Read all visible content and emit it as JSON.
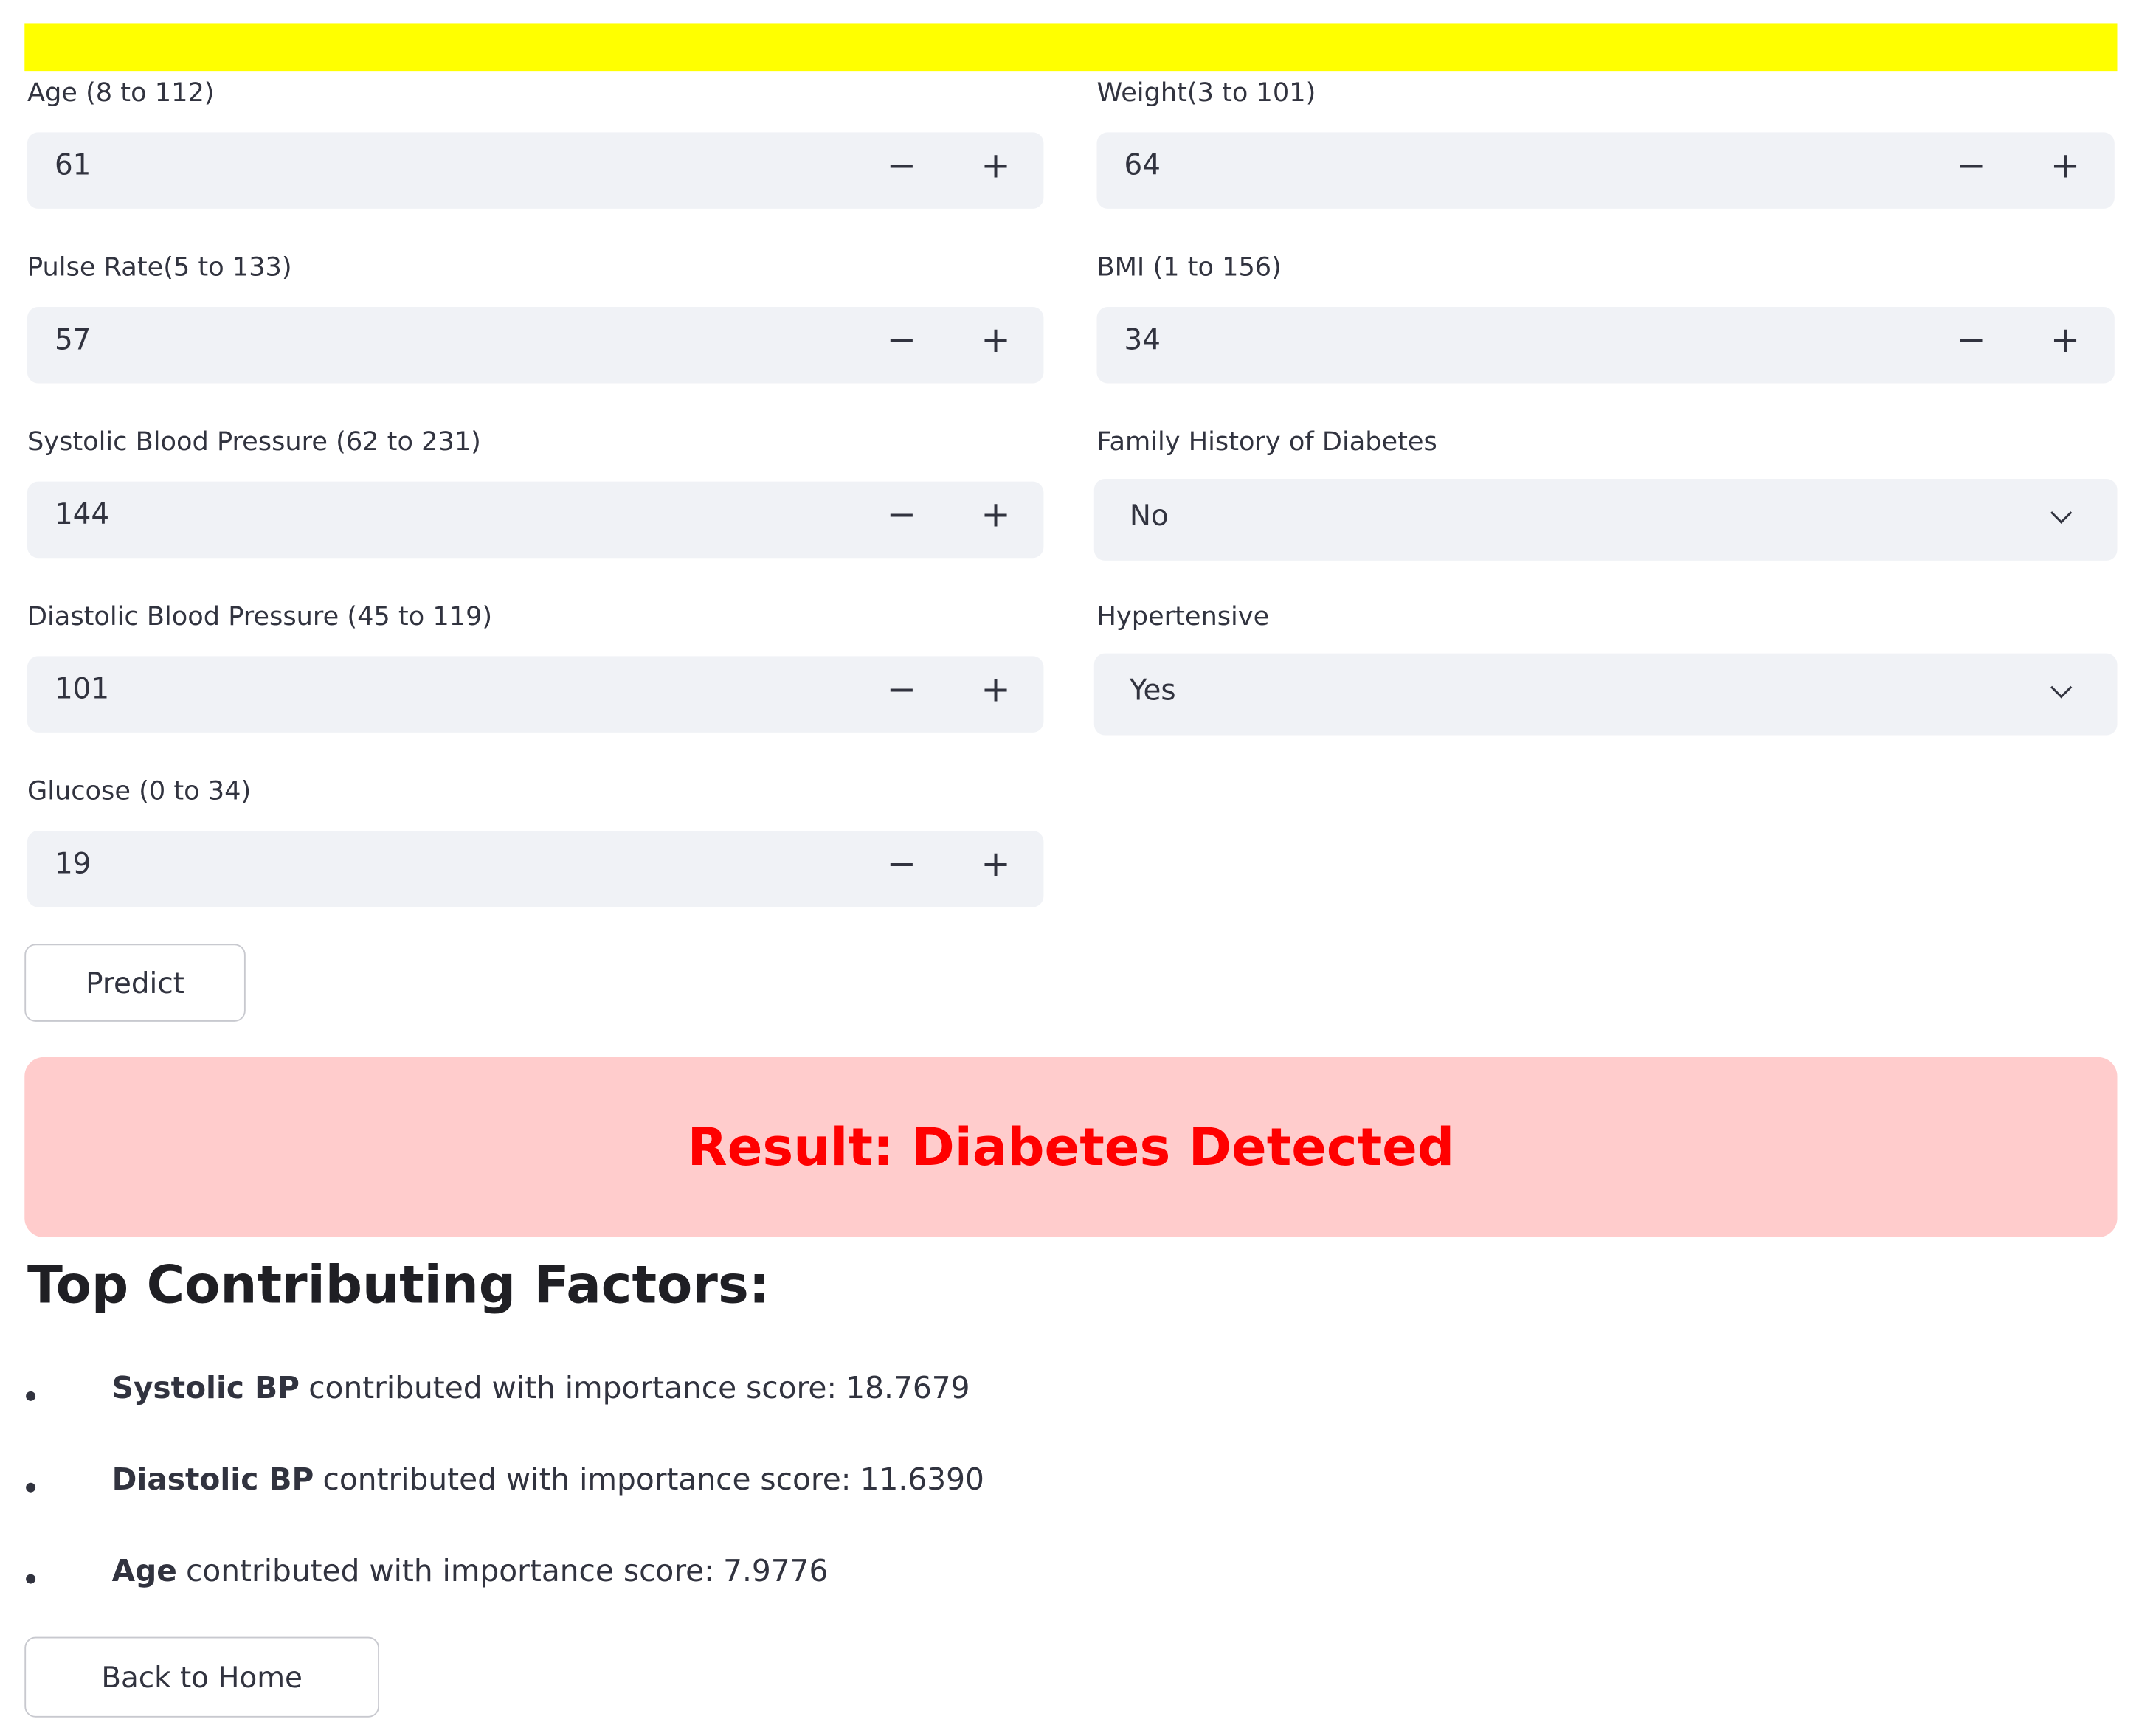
{
  "left_column": [
    {
      "label": "Age (8 to 112)",
      "value": 61
    },
    {
      "label": "Pulse Rate(5 to 133)",
      "value": 57
    },
    {
      "label": "Systolic Blood Pressure (62 to 231)",
      "value": 144
    },
    {
      "label": "Diastolic Blood Pressure (45 to 119)",
      "value": 101
    },
    {
      "label": "Glucose (0 to 34)",
      "value": 19
    }
  ],
  "right_column": [
    {
      "label": "Weight(3 to 101)",
      "value": 64
    },
    {
      "label": "BMI (1 to 156)",
      "value": 34
    },
    {
      "label": "Family History of Diabetes",
      "selected": "No"
    },
    {
      "label": "Hypertensive",
      "selected": "Yes"
    }
  ],
  "predict_button": "Predict",
  "result": "Result: Diabetes Detected",
  "factors_heading": "Top Contributing Factors:",
  "factors": [
    {
      "feature": "Systolic BP",
      "text": "contributed with importance score:",
      "score": "18.7679"
    },
    {
      "feature": "Diastolic BP",
      "text": "contributed with importance score:",
      "score": "11.6390"
    },
    {
      "feature": "Age",
      "text": "contributed with importance score:",
      "score": "7.9776"
    }
  ],
  "back_button": "Back to Home"
}
